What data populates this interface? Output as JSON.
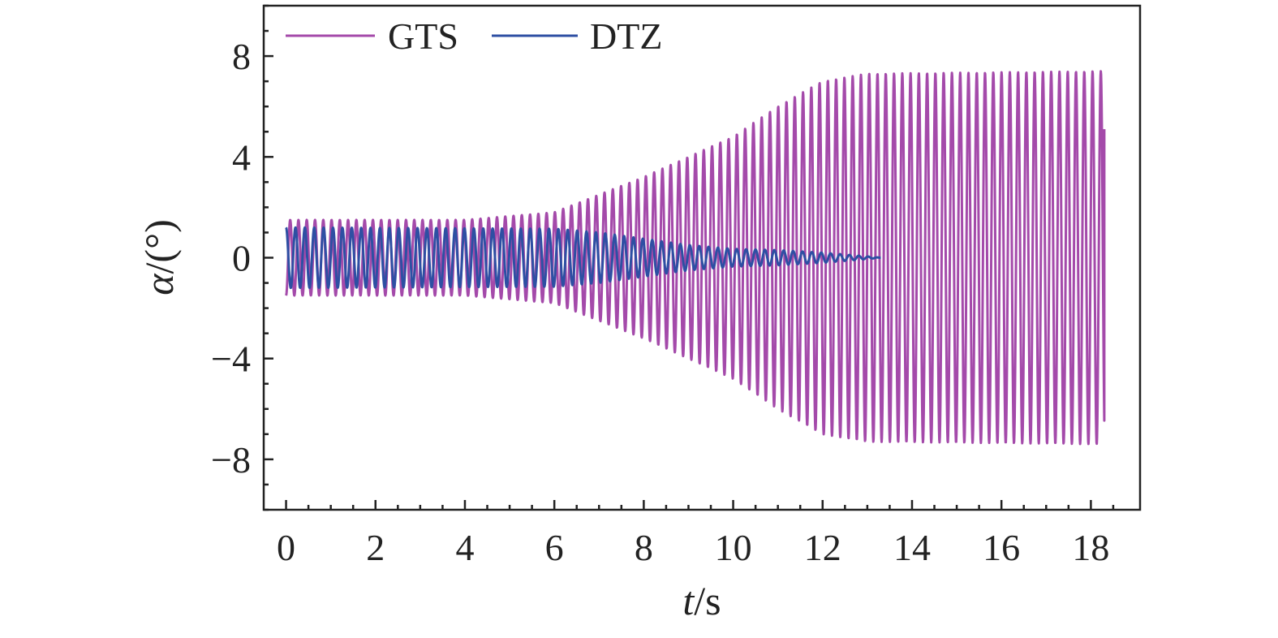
{
  "chart_data": {
    "type": "line",
    "xlabel": {
      "italic": "t",
      "rest": "/s"
    },
    "ylabel": {
      "italic": "α",
      "rest": "/(°)"
    },
    "xlim": [
      -0.5,
      19.1
    ],
    "ylim": [
      -10,
      10
    ],
    "x_ticks": [
      0,
      2,
      4,
      6,
      8,
      10,
      12,
      14,
      16,
      18
    ],
    "x_tick_labels": [
      "0",
      "2",
      "4",
      "6",
      "8",
      "10",
      "12",
      "14",
      "16",
      "18"
    ],
    "y_ticks": [
      8,
      4,
      0,
      -4,
      -8
    ],
    "y_tick_labels": [
      "8",
      "4",
      "0",
      "−4",
      "−8"
    ],
    "legend": {
      "placement": "top-left",
      "entries": [
        "GTS",
        "DTZ"
      ]
    },
    "grid": false,
    "series": [
      {
        "name": "GTS",
        "color": "#a44aaa",
        "shape": "growing oscillation",
        "t_start": 0.0,
        "t_end": 18.3,
        "period_s": 0.185,
        "amplitude_envelope": [
          {
            "t": 0,
            "a": 1.5
          },
          {
            "t": 4,
            "a": 1.5
          },
          {
            "t": 6,
            "a": 1.8
          },
          {
            "t": 8,
            "a": 3.2
          },
          {
            "t": 10,
            "a": 4.8
          },
          {
            "t": 11,
            "a": 6.0
          },
          {
            "t": 12,
            "a": 7.0
          },
          {
            "t": 13,
            "a": 7.3
          },
          {
            "t": 18.3,
            "a": 7.4
          }
        ],
        "end_value": 5.1
      },
      {
        "name": "DTZ",
        "color": "#2e4fa3",
        "shape": "decaying oscillation",
        "t_start": 0.0,
        "t_end": 13.3,
        "period_s": 0.21,
        "amplitude_envelope": [
          {
            "t": 0,
            "a": 1.2
          },
          {
            "t": 6,
            "a": 1.15
          },
          {
            "t": 7,
            "a": 1.0
          },
          {
            "t": 8,
            "a": 0.75
          },
          {
            "t": 9,
            "a": 0.5
          },
          {
            "t": 10,
            "a": 0.35
          },
          {
            "t": 11,
            "a": 0.3
          },
          {
            "t": 12,
            "a": 0.2
          },
          {
            "t": 13,
            "a": 0.05
          },
          {
            "t": 13.3,
            "a": 0.0
          }
        ]
      }
    ]
  }
}
